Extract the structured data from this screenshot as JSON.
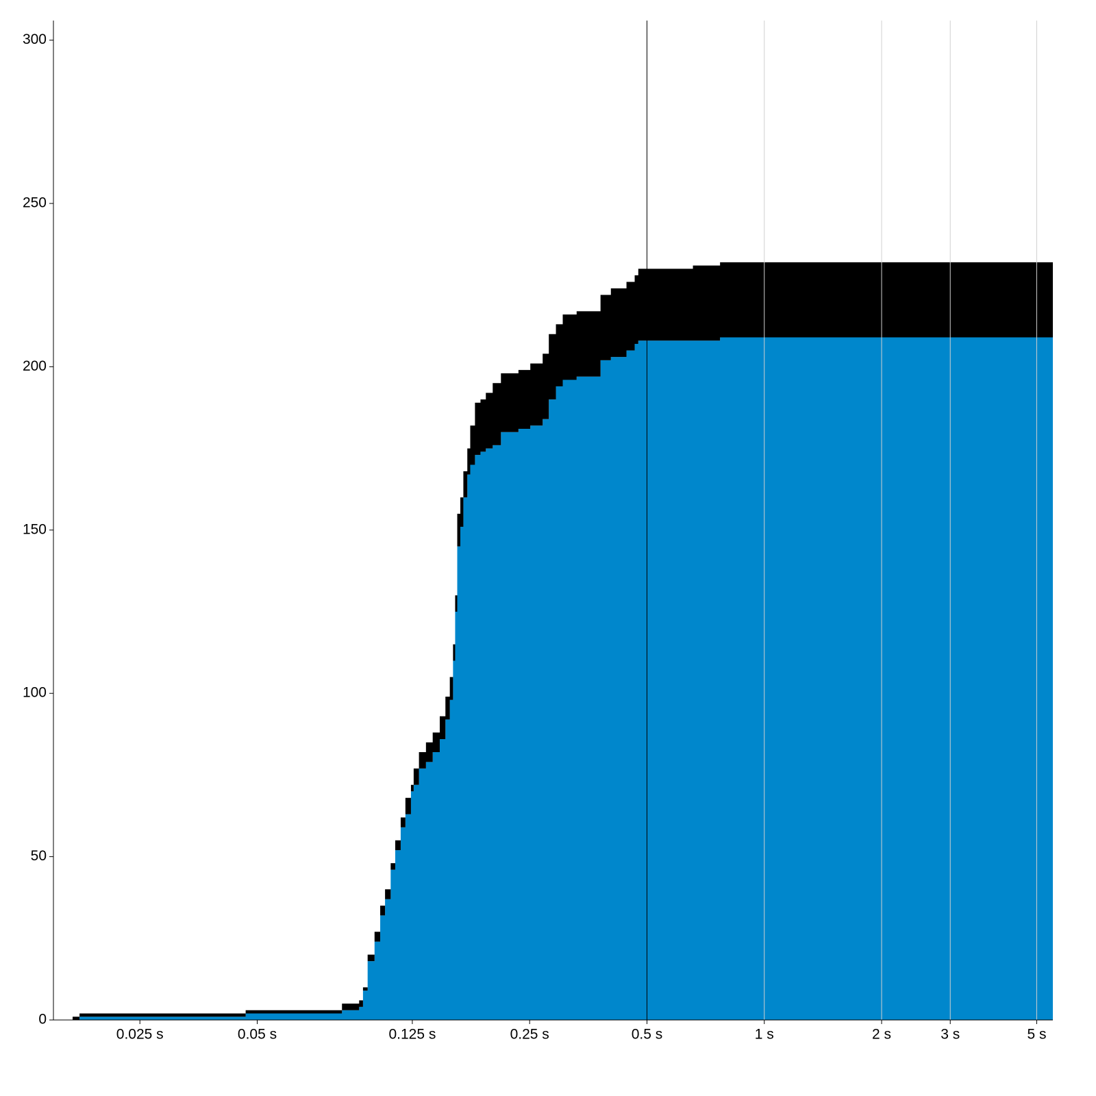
{
  "chart_data": {
    "type": "step-area",
    "stacked": true,
    "log_x": true,
    "x": [
      0.0168,
      0.0175,
      0.0467,
      0.0825,
      0.0913,
      0.0934,
      0.096,
      0.1,
      0.1034,
      0.1064,
      0.11,
      0.113,
      0.1167,
      0.12,
      0.124,
      0.126,
      0.13,
      0.1355,
      0.141,
      0.147,
      0.152,
      0.156,
      0.159,
      0.161,
      0.163,
      0.166,
      0.169,
      0.173,
      0.176,
      0.181,
      0.187,
      0.193,
      0.201,
      0.211,
      0.234,
      0.251,
      0.27,
      0.28,
      0.292,
      0.304,
      0.33,
      0.38,
      0.404,
      0.443,
      0.465,
      0.475,
      0.656,
      0.77,
      5.5
    ],
    "series": [
      {
        "color": "#0087cc",
        "values": [
          0,
          1,
          2,
          3,
          4,
          9,
          18,
          24,
          32,
          37,
          46,
          52,
          59,
          63,
          70,
          72,
          77,
          79,
          82,
          86,
          92,
          98,
          110,
          125,
          145,
          151,
          160,
          167,
          170,
          173,
          174,
          175,
          176,
          180,
          181,
          182,
          184,
          190,
          194,
          196,
          197,
          202,
          203,
          205,
          207,
          208,
          208,
          209,
          209
        ]
      },
      {
        "color": "#000000",
        "values": [
          1,
          1,
          1,
          2,
          2,
          1,
          2,
          3,
          3,
          3,
          2,
          3,
          3,
          5,
          2,
          5,
          5,
          6,
          6,
          7,
          7,
          7,
          5,
          5,
          10,
          9,
          8,
          8,
          12,
          16,
          16,
          17,
          19,
          18,
          18,
          19,
          20,
          20,
          19,
          20,
          20,
          20,
          21,
          21,
          21,
          22,
          23,
          23,
          23
        ]
      }
    ],
    "xlim": [
      0.015,
      5.5
    ],
    "ylim": [
      0,
      306
    ],
    "xticks": [
      {
        "value": 0.025,
        "label": "0.025 s"
      },
      {
        "value": 0.05,
        "label": "0.05 s"
      },
      {
        "value": 0.125,
        "label": "0.125 s"
      },
      {
        "value": 0.25,
        "label": "0.25 s"
      },
      {
        "value": 0.5,
        "label": "0.5 s"
      },
      {
        "value": 1,
        "label": "1 s"
      },
      {
        "value": 2,
        "label": "2 s"
      },
      {
        "value": 3,
        "label": "3 s"
      },
      {
        "value": 5,
        "label": "5 s"
      }
    ],
    "yticks": [
      0,
      50,
      100,
      150,
      200,
      250,
      300
    ],
    "vline": 0.5,
    "vline_color": "#000000",
    "grid_color": "#d0d0d0"
  }
}
